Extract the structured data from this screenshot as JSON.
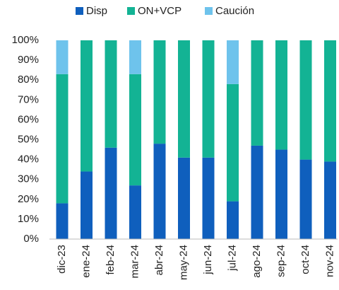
{
  "chart_data": {
    "type": "stacked_bar",
    "categories": [
      "dic-23",
      "ene-24",
      "feb-24",
      "mar-24",
      "abr-24",
      "may-24",
      "jun-24",
      "jul-24",
      "ago-24",
      "sep-24",
      "oct-24",
      "nov-24"
    ],
    "series": [
      {
        "name": "Disp",
        "color": "#0f5fbd",
        "values": [
          18,
          34,
          46,
          27,
          48,
          41,
          41,
          19,
          47,
          45,
          40,
          39
        ]
      },
      {
        "name": "ON+VCP",
        "color": "#13b394",
        "values": [
          65,
          66,
          54,
          56,
          52,
          59,
          59,
          59,
          53,
          55,
          60,
          61
        ]
      },
      {
        "name": "Caución",
        "color": "#6ec3ec",
        "values": [
          17,
          0,
          0,
          17,
          0,
          0,
          0,
          22,
          0,
          0,
          0,
          0
        ]
      }
    ],
    "ylim": [
      0,
      100
    ],
    "yticks": [
      {
        "value": 0,
        "label": "0%"
      },
      {
        "value": 10,
        "label": "10%"
      },
      {
        "value": 20,
        "label": "20%"
      },
      {
        "value": 30,
        "label": "30%"
      },
      {
        "value": 40,
        "label": "40%"
      },
      {
        "value": 50,
        "label": "50%"
      },
      {
        "value": 60,
        "label": "60%"
      },
      {
        "value": 70,
        "label": "70%"
      },
      {
        "value": 80,
        "label": "80%"
      },
      {
        "value": 90,
        "label": "90%"
      },
      {
        "value": 100,
        "label": "100%"
      }
    ],
    "grid": false,
    "legend": "top"
  }
}
